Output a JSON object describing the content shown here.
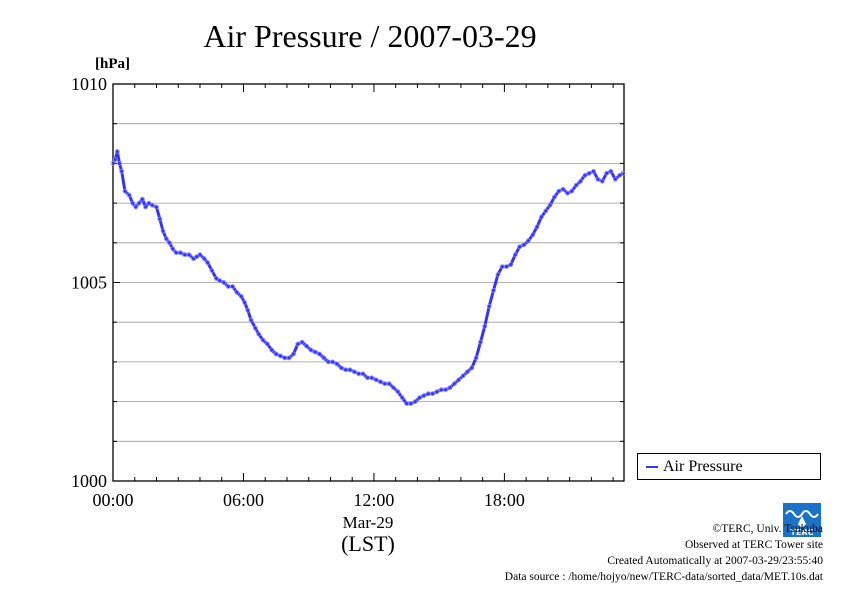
{
  "chart_data": {
    "type": "line",
    "title": "Air Pressure / 2007-03-29",
    "ylabel": "[hPa]",
    "xlabel_date": "Mar-29",
    "xlabel_tz": "(LST)",
    "ylim": [
      1000,
      1010
    ],
    "xlim": [
      0,
      23.5
    ],
    "yticks": [
      1000,
      1005,
      1010
    ],
    "ytick_labels": [
      "1000",
      "1005",
      "1010"
    ],
    "xticks": [
      0,
      6,
      12,
      18
    ],
    "xtick_labels": [
      "00:00",
      "06:00",
      "12:00",
      "18:00"
    ],
    "grid": true,
    "legend": "right",
    "series": [
      {
        "name": "Air Pressure",
        "color": "#3333ff",
        "x": [
          0.0,
          0.1,
          0.2,
          0.3,
          0.4,
          0.55,
          0.75,
          0.9,
          1.05,
          1.2,
          1.35,
          1.5,
          1.65,
          1.8,
          2.0,
          2.15,
          2.3,
          2.45,
          2.6,
          2.75,
          2.9,
          3.1,
          3.3,
          3.5,
          3.7,
          3.85,
          4.0,
          4.2,
          4.35,
          4.55,
          4.75,
          4.9,
          5.1,
          5.3,
          5.5,
          5.7,
          5.9,
          6.05,
          6.2,
          6.35,
          6.55,
          6.7,
          6.9,
          7.1,
          7.3,
          7.5,
          7.7,
          7.9,
          8.1,
          8.3,
          8.5,
          8.7,
          8.9,
          9.1,
          9.3,
          9.5,
          9.7,
          9.9,
          10.1,
          10.3,
          10.5,
          10.7,
          10.9,
          11.1,
          11.3,
          11.5,
          11.7,
          11.9,
          12.1,
          12.3,
          12.5,
          12.7,
          12.9,
          13.1,
          13.3,
          13.5,
          13.7,
          13.9,
          14.1,
          14.3,
          14.5,
          14.7,
          14.9,
          15.1,
          15.3,
          15.5,
          15.7,
          15.9,
          16.1,
          16.3,
          16.5,
          16.7,
          16.9,
          17.1,
          17.3,
          17.5,
          17.7,
          17.9,
          18.1,
          18.3,
          18.5,
          18.7,
          18.9,
          19.1,
          19.3,
          19.5,
          19.7,
          19.9,
          20.1,
          20.3,
          20.5,
          20.7,
          20.9,
          21.1,
          21.3,
          21.5,
          21.7,
          21.9,
          22.1,
          22.3,
          22.5,
          22.7,
          22.9,
          23.1,
          23.3,
          23.45
        ],
        "y": [
          1008.0,
          1008.1,
          1008.3,
          1008.0,
          1007.8,
          1007.3,
          1007.2,
          1007.0,
          1006.9,
          1007.0,
          1007.1,
          1006.9,
          1007.0,
          1006.95,
          1006.9,
          1006.6,
          1006.3,
          1006.1,
          1006.0,
          1005.85,
          1005.75,
          1005.75,
          1005.7,
          1005.7,
          1005.6,
          1005.65,
          1005.7,
          1005.6,
          1005.5,
          1005.3,
          1005.1,
          1005.05,
          1005.0,
          1004.9,
          1004.9,
          1004.75,
          1004.65,
          1004.5,
          1004.3,
          1004.05,
          1003.85,
          1003.7,
          1003.55,
          1003.45,
          1003.3,
          1003.2,
          1003.15,
          1003.1,
          1003.1,
          1003.2,
          1003.45,
          1003.5,
          1003.4,
          1003.3,
          1003.25,
          1003.2,
          1003.1,
          1003.0,
          1003.0,
          1002.95,
          1002.85,
          1002.8,
          1002.8,
          1002.75,
          1002.7,
          1002.7,
          1002.6,
          1002.6,
          1002.55,
          1002.5,
          1002.45,
          1002.45,
          1002.35,
          1002.25,
          1002.1,
          1001.95,
          1001.95,
          1002.0,
          1002.1,
          1002.15,
          1002.2,
          1002.2,
          1002.25,
          1002.3,
          1002.3,
          1002.35,
          1002.45,
          1002.55,
          1002.65,
          1002.75,
          1002.85,
          1003.1,
          1003.5,
          1003.9,
          1004.4,
          1004.8,
          1005.2,
          1005.4,
          1005.4,
          1005.45,
          1005.7,
          1005.9,
          1005.95,
          1006.05,
          1006.2,
          1006.4,
          1006.65,
          1006.8,
          1006.95,
          1007.15,
          1007.3,
          1007.35,
          1007.25,
          1007.3,
          1007.45,
          1007.55,
          1007.7,
          1007.75,
          1007.8,
          1007.6,
          1007.55,
          1007.75,
          1007.8,
          1007.6,
          1007.7,
          1007.75
        ]
      }
    ]
  },
  "legend": {
    "label": "Air Pressure"
  },
  "footer": {
    "copyright": "©TERC, Univ. Tsukuba",
    "observed": "Observed at TERC Tower site",
    "created": "Created Automatically at 2007-03-29/23:55:40",
    "source": "Data source : /home/hojyo/new/TERC-data/sorted_data/MET.10s.dat"
  },
  "logo": {
    "text": "TERC",
    "color": "#1a73c8"
  }
}
